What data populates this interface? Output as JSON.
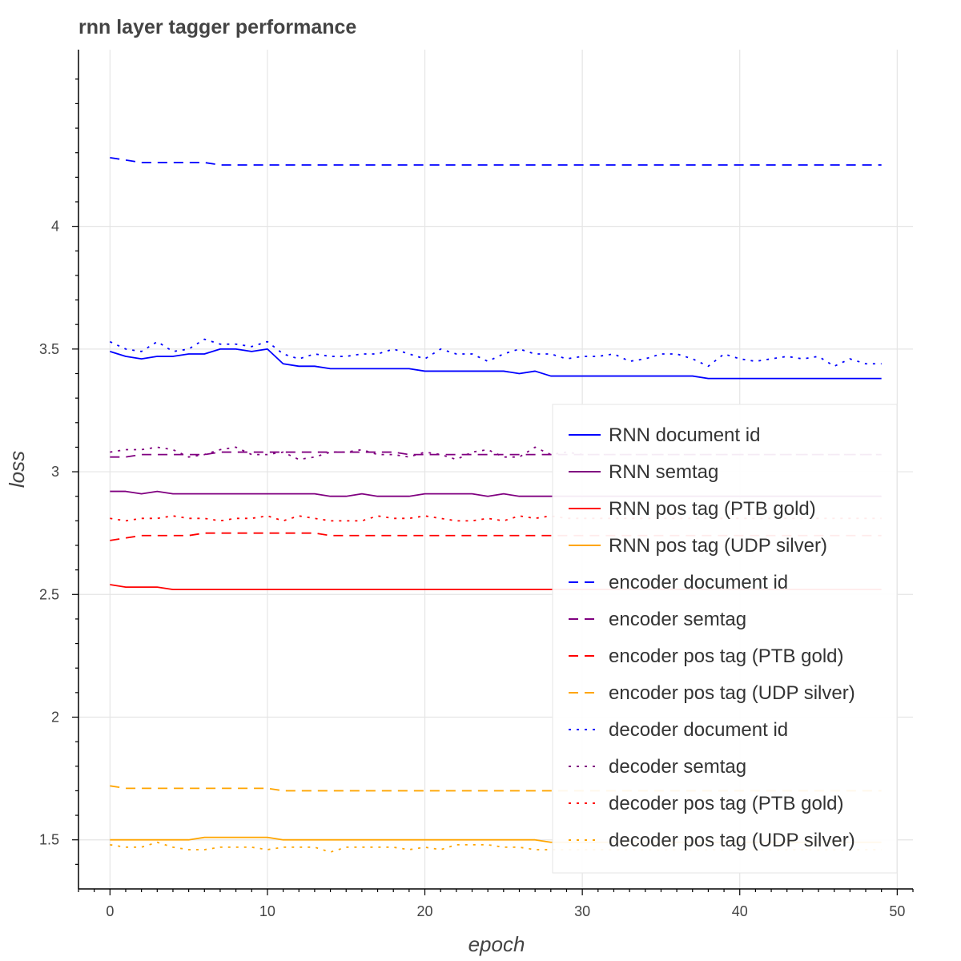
{
  "chart_data": {
    "type": "line",
    "title": "rnn layer tagger performance",
    "xlabel": "epoch",
    "ylabel": "loss",
    "xlim": [
      -2,
      51
    ],
    "ylim": [
      1.3,
      4.72
    ],
    "xticks": [
      0,
      10,
      20,
      30,
      40,
      50
    ],
    "yticks": [
      1.5,
      2,
      2.5,
      3,
      3.5,
      4
    ],
    "grid": true,
    "legend_position": "bottom-right",
    "x": [
      0,
      1,
      2,
      3,
      4,
      5,
      6,
      7,
      8,
      9,
      10,
      11,
      12,
      13,
      14,
      15,
      16,
      17,
      18,
      19,
      20,
      21,
      22,
      23,
      24,
      25,
      26,
      27,
      28,
      29,
      30,
      31,
      32,
      33,
      34,
      35,
      36,
      37,
      38,
      39,
      40,
      41,
      42,
      43,
      44,
      45,
      46,
      47,
      48,
      49
    ],
    "series": [
      {
        "name": "RNN document id",
        "color": "#0000ff",
        "dash": "solid",
        "values": [
          3.49,
          3.47,
          3.46,
          3.47,
          3.47,
          3.48,
          3.48,
          3.5,
          3.5,
          3.49,
          3.5,
          3.44,
          3.43,
          3.43,
          3.42,
          3.42,
          3.42,
          3.42,
          3.42,
          3.42,
          3.41,
          3.41,
          3.41,
          3.41,
          3.41,
          3.41,
          3.4,
          3.41,
          3.39,
          3.39,
          3.39,
          3.39,
          3.39,
          3.39,
          3.39,
          3.39,
          3.39,
          3.39,
          3.38,
          3.38,
          3.38,
          3.38,
          3.38,
          3.38,
          3.38,
          3.38,
          3.38,
          3.38,
          3.38,
          3.38
        ]
      },
      {
        "name": "RNN semtag",
        "color": "#800080",
        "dash": "solid",
        "values": [
          2.92,
          2.92,
          2.91,
          2.92,
          2.91,
          2.91,
          2.91,
          2.91,
          2.91,
          2.91,
          2.91,
          2.91,
          2.91,
          2.91,
          2.9,
          2.9,
          2.91,
          2.9,
          2.9,
          2.9,
          2.91,
          2.91,
          2.91,
          2.91,
          2.9,
          2.91,
          2.9,
          2.9,
          2.9,
          2.9,
          2.9,
          2.9,
          2.9,
          2.9,
          2.9,
          2.9,
          2.9,
          2.9,
          2.9,
          2.9,
          2.9,
          2.9,
          2.9,
          2.9,
          2.9,
          2.9,
          2.9,
          2.9,
          2.9,
          2.9
        ]
      },
      {
        "name": "RNN pos tag (PTB gold)",
        "color": "#ff0000",
        "dash": "solid",
        "values": [
          2.54,
          2.53,
          2.53,
          2.53,
          2.52,
          2.52,
          2.52,
          2.52,
          2.52,
          2.52,
          2.52,
          2.52,
          2.52,
          2.52,
          2.52,
          2.52,
          2.52,
          2.52,
          2.52,
          2.52,
          2.52,
          2.52,
          2.52,
          2.52,
          2.52,
          2.52,
          2.52,
          2.52,
          2.52,
          2.52,
          2.52,
          2.52,
          2.52,
          2.52,
          2.52,
          2.52,
          2.52,
          2.52,
          2.52,
          2.52,
          2.52,
          2.52,
          2.52,
          2.52,
          2.52,
          2.52,
          2.52,
          2.52,
          2.52,
          2.52
        ]
      },
      {
        "name": "RNN pos tag (UDP silver)",
        "color": "#ffa500",
        "dash": "solid",
        "values": [
          1.5,
          1.5,
          1.5,
          1.5,
          1.5,
          1.5,
          1.51,
          1.51,
          1.51,
          1.51,
          1.51,
          1.5,
          1.5,
          1.5,
          1.5,
          1.5,
          1.5,
          1.5,
          1.5,
          1.5,
          1.5,
          1.5,
          1.5,
          1.5,
          1.5,
          1.5,
          1.5,
          1.5,
          1.49,
          1.49,
          1.49,
          1.49,
          1.49,
          1.49,
          1.49,
          1.49,
          1.49,
          1.49,
          1.49,
          1.49,
          1.49,
          1.49,
          1.49,
          1.49,
          1.49,
          1.49,
          1.49,
          1.49,
          1.49,
          1.49
        ]
      },
      {
        "name": "encoder document id",
        "color": "#0000ff",
        "dash": "dashed",
        "values": [
          4.28,
          4.27,
          4.26,
          4.26,
          4.26,
          4.26,
          4.26,
          4.25,
          4.25,
          4.25,
          4.25,
          4.25,
          4.25,
          4.25,
          4.25,
          4.25,
          4.25,
          4.25,
          4.25,
          4.25,
          4.25,
          4.25,
          4.25,
          4.25,
          4.25,
          4.25,
          4.25,
          4.25,
          4.25,
          4.25,
          4.25,
          4.25,
          4.25,
          4.25,
          4.25,
          4.25,
          4.25,
          4.25,
          4.25,
          4.25,
          4.25,
          4.25,
          4.25,
          4.25,
          4.25,
          4.25,
          4.25,
          4.25,
          4.25,
          4.25
        ]
      },
      {
        "name": "encoder semtag",
        "color": "#800080",
        "dash": "dashed",
        "values": [
          3.06,
          3.06,
          3.07,
          3.07,
          3.07,
          3.07,
          3.07,
          3.08,
          3.08,
          3.08,
          3.08,
          3.08,
          3.08,
          3.08,
          3.08,
          3.08,
          3.08,
          3.08,
          3.08,
          3.07,
          3.07,
          3.07,
          3.07,
          3.07,
          3.07,
          3.07,
          3.07,
          3.07,
          3.07,
          3.07,
          3.07,
          3.07,
          3.07,
          3.07,
          3.07,
          3.07,
          3.07,
          3.07,
          3.07,
          3.07,
          3.07,
          3.07,
          3.07,
          3.07,
          3.07,
          3.07,
          3.07,
          3.07,
          3.07,
          3.07
        ]
      },
      {
        "name": "encoder pos tag (PTB gold)",
        "color": "#ff0000",
        "dash": "dashed",
        "values": [
          2.72,
          2.73,
          2.74,
          2.74,
          2.74,
          2.74,
          2.75,
          2.75,
          2.75,
          2.75,
          2.75,
          2.75,
          2.75,
          2.75,
          2.74,
          2.74,
          2.74,
          2.74,
          2.74,
          2.74,
          2.74,
          2.74,
          2.74,
          2.74,
          2.74,
          2.74,
          2.74,
          2.74,
          2.74,
          2.74,
          2.74,
          2.74,
          2.74,
          2.74,
          2.74,
          2.74,
          2.74,
          2.74,
          2.74,
          2.74,
          2.74,
          2.74,
          2.74,
          2.74,
          2.74,
          2.74,
          2.74,
          2.74,
          2.74,
          2.74
        ]
      },
      {
        "name": "encoder pos tag (UDP silver)",
        "color": "#ffa500",
        "dash": "dashed",
        "values": [
          1.72,
          1.71,
          1.71,
          1.71,
          1.71,
          1.71,
          1.71,
          1.71,
          1.71,
          1.71,
          1.71,
          1.7,
          1.7,
          1.7,
          1.7,
          1.7,
          1.7,
          1.7,
          1.7,
          1.7,
          1.7,
          1.7,
          1.7,
          1.7,
          1.7,
          1.7,
          1.7,
          1.7,
          1.7,
          1.7,
          1.7,
          1.7,
          1.7,
          1.7,
          1.7,
          1.7,
          1.7,
          1.7,
          1.7,
          1.7,
          1.7,
          1.7,
          1.7,
          1.7,
          1.7,
          1.7,
          1.7,
          1.7,
          1.7,
          1.7
        ]
      },
      {
        "name": "decoder document id",
        "color": "#0000ff",
        "dash": "dotted",
        "values": [
          3.53,
          3.5,
          3.49,
          3.53,
          3.49,
          3.5,
          3.54,
          3.52,
          3.52,
          3.51,
          3.53,
          3.48,
          3.46,
          3.48,
          3.47,
          3.47,
          3.48,
          3.48,
          3.5,
          3.48,
          3.46,
          3.5,
          3.48,
          3.48,
          3.45,
          3.48,
          3.5,
          3.48,
          3.48,
          3.46,
          3.47,
          3.47,
          3.48,
          3.45,
          3.46,
          3.48,
          3.48,
          3.46,
          3.43,
          3.48,
          3.46,
          3.45,
          3.46,
          3.47,
          3.46,
          3.47,
          3.43,
          3.46,
          3.44,
          3.44
        ]
      },
      {
        "name": "decoder semtag",
        "color": "#800080",
        "dash": "dotted",
        "values": [
          3.08,
          3.09,
          3.09,
          3.1,
          3.09,
          3.06,
          3.07,
          3.09,
          3.1,
          3.07,
          3.07,
          3.08,
          3.05,
          3.06,
          3.08,
          3.08,
          3.09,
          3.07,
          3.07,
          3.06,
          3.08,
          3.07,
          3.05,
          3.08,
          3.09,
          3.06,
          3.06,
          3.1,
          3.07,
          3.08,
          3.07,
          3.07,
          3.07,
          3.07,
          3.07,
          3.07,
          3.07,
          3.07,
          3.07,
          3.07,
          3.07,
          3.07,
          3.07,
          3.07,
          3.07,
          3.07,
          3.07,
          3.07,
          3.07,
          3.07
        ]
      },
      {
        "name": "decoder pos tag (PTB gold)",
        "color": "#ff0000",
        "dash": "dotted",
        "values": [
          2.81,
          2.8,
          2.81,
          2.81,
          2.82,
          2.81,
          2.81,
          2.8,
          2.81,
          2.81,
          2.82,
          2.8,
          2.82,
          2.81,
          2.8,
          2.8,
          2.8,
          2.82,
          2.81,
          2.81,
          2.82,
          2.81,
          2.8,
          2.8,
          2.81,
          2.8,
          2.82,
          2.81,
          2.82,
          2.81,
          2.81,
          2.81,
          2.81,
          2.81,
          2.81,
          2.81,
          2.81,
          2.81,
          2.81,
          2.81,
          2.81,
          2.81,
          2.81,
          2.81,
          2.81,
          2.81,
          2.81,
          2.81,
          2.81,
          2.81
        ]
      },
      {
        "name": "decoder pos tag (UDP silver)",
        "color": "#ffa500",
        "dash": "dotted",
        "values": [
          1.48,
          1.47,
          1.47,
          1.49,
          1.47,
          1.46,
          1.46,
          1.47,
          1.47,
          1.47,
          1.46,
          1.47,
          1.47,
          1.47,
          1.45,
          1.47,
          1.47,
          1.47,
          1.47,
          1.46,
          1.47,
          1.46,
          1.48,
          1.48,
          1.48,
          1.47,
          1.47,
          1.46,
          1.46,
          1.46,
          1.46,
          1.46,
          1.46,
          1.46,
          1.46,
          1.46,
          1.46,
          1.46,
          1.46,
          1.46,
          1.46,
          1.46,
          1.46,
          1.46,
          1.46,
          1.46,
          1.46,
          1.46,
          1.46,
          1.46
        ]
      }
    ]
  }
}
